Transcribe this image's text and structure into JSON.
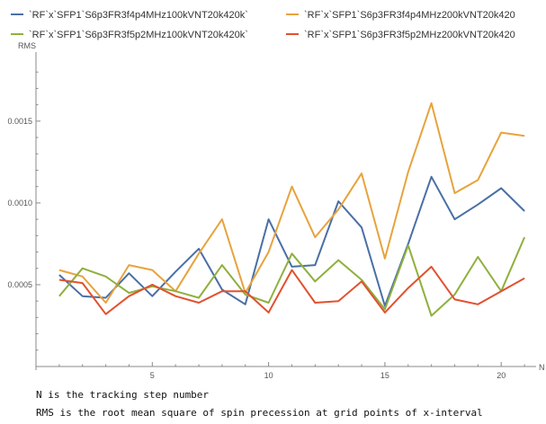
{
  "chart_data": {
    "type": "line",
    "xlabel": "N",
    "ylabel": "RMS",
    "xlim": [
      0,
      21.5
    ],
    "ylim": [
      0,
      0.0019
    ],
    "x_ticks": [
      5,
      10,
      15,
      20
    ],
    "y_ticks": [
      0.0005,
      0.001,
      0.0015
    ],
    "y_tick_labels": [
      "0.0005",
      "0.0010",
      "0.0015"
    ],
    "grid": false,
    "legend_position": "top",
    "x": [
      1,
      2,
      3,
      4,
      5,
      6,
      7,
      8,
      9,
      10,
      11,
      12,
      13,
      14,
      15,
      16,
      17,
      18,
      19,
      20,
      21
    ],
    "series": [
      {
        "name": "`RF`x`SFP1`S6p3FR3f4p4MHz100kVNT20k420k`",
        "color": "#4a6fa5",
        "values": [
          0.00056,
          0.00043,
          0.00042,
          0.00057,
          0.00043,
          0.00058,
          0.00072,
          0.00047,
          0.00038,
          0.0009,
          0.00061,
          0.00062,
          0.00101,
          0.00085,
          0.00037,
          0.00075,
          0.00116,
          0.0009,
          0.00099,
          0.00109,
          0.00095
        ]
      },
      {
        "name": "`RF`x`SFP1`S6p3FR3f4p4MHz200kVNT20k420",
        "color": "#e7a33d",
        "values": [
          0.00059,
          0.00055,
          0.00039,
          0.00062,
          0.00059,
          0.00046,
          0.00069,
          0.0009,
          0.00045,
          0.0007,
          0.0011,
          0.00079,
          0.00096,
          0.00118,
          0.00066,
          0.00119,
          0.00161,
          0.00106,
          0.00114,
          0.00143,
          0.00141
        ]
      },
      {
        "name": "`RF`x`SFP1`S6p3FR3f5p2MHz100kVNT20k420k`",
        "color": "#8fb03e",
        "values": [
          0.00043,
          0.0006,
          0.00055,
          0.00045,
          0.00049,
          0.00046,
          0.00042,
          0.00062,
          0.00044,
          0.00039,
          0.00069,
          0.00052,
          0.00065,
          0.00053,
          0.00035,
          0.00074,
          0.00031,
          0.00044,
          0.00067,
          0.00046,
          0.00079
        ]
      },
      {
        "name": "`RF`x`SFP1`S6p3FR3f5p2MHz200kVNT20k420",
        "color": "#e1512f",
        "values": [
          0.00053,
          0.00051,
          0.00032,
          0.00043,
          0.0005,
          0.00043,
          0.00039,
          0.00046,
          0.00046,
          0.00033,
          0.00059,
          0.00039,
          0.0004,
          0.00052,
          0.00033,
          0.00048,
          0.00061,
          0.00041,
          0.00038,
          0.00046,
          0.00054
        ]
      }
    ]
  },
  "captions": [
    "N is the tracking step number",
    "RMS is the root mean square of spin precession at grid points of x-interval"
  ]
}
